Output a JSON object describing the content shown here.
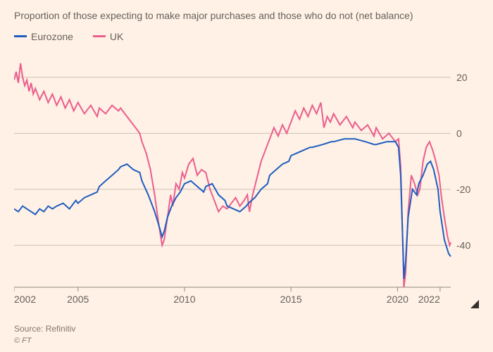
{
  "subtitle": "Proportion of those expecting to make major purchases and those who do not (net balance)",
  "legend": {
    "eurozone": "Eurozone",
    "uk": "UK"
  },
  "chart": {
    "type": "line",
    "background_color": "#fff1e5",
    "grid_color": "#ccc1b7",
    "axis_color": "#8f8980",
    "text_color": "#66605c",
    "label_fontsize": 14,
    "line_width": 2,
    "xlim": [
      2002,
      2022.5
    ],
    "ylim": [
      -55,
      28
    ],
    "yticks": [
      20,
      0,
      -20,
      -40
    ],
    "xticks": [
      2002,
      2005,
      2010,
      2015,
      2020,
      2022
    ],
    "series": [
      {
        "name": "Eurozone",
        "color": "#1f5dbf",
        "points": [
          [
            2002.0,
            -27
          ],
          [
            2002.2,
            -28
          ],
          [
            2002.4,
            -26
          ],
          [
            2002.6,
            -27
          ],
          [
            2002.8,
            -28
          ],
          [
            2003.0,
            -29
          ],
          [
            2003.2,
            -27
          ],
          [
            2003.4,
            -28
          ],
          [
            2003.6,
            -26
          ],
          [
            2003.8,
            -27
          ],
          [
            2004.0,
            -26
          ],
          [
            2004.3,
            -25
          ],
          [
            2004.6,
            -27
          ],
          [
            2004.9,
            -24
          ],
          [
            2005.0,
            -25
          ],
          [
            2005.3,
            -23
          ],
          [
            2005.6,
            -22
          ],
          [
            2005.9,
            -21
          ],
          [
            2006.0,
            -19
          ],
          [
            2006.3,
            -17
          ],
          [
            2006.6,
            -15
          ],
          [
            2006.9,
            -13
          ],
          [
            2007.0,
            -12
          ],
          [
            2007.3,
            -11
          ],
          [
            2007.6,
            -13
          ],
          [
            2007.9,
            -14
          ],
          [
            2008.0,
            -17
          ],
          [
            2008.3,
            -22
          ],
          [
            2008.6,
            -28
          ],
          [
            2008.8,
            -33
          ],
          [
            2008.95,
            -37
          ],
          [
            2009.05,
            -35
          ],
          [
            2009.2,
            -30
          ],
          [
            2009.4,
            -26
          ],
          [
            2009.6,
            -23
          ],
          [
            2009.8,
            -21
          ],
          [
            2010.0,
            -18
          ],
          [
            2010.3,
            -17
          ],
          [
            2010.6,
            -19
          ],
          [
            2010.9,
            -21
          ],
          [
            2011.0,
            -19
          ],
          [
            2011.3,
            -18
          ],
          [
            2011.6,
            -22
          ],
          [
            2011.9,
            -24
          ],
          [
            2012.0,
            -26
          ],
          [
            2012.3,
            -27
          ],
          [
            2012.6,
            -28
          ],
          [
            2012.9,
            -26
          ],
          [
            2013.0,
            -25
          ],
          [
            2013.3,
            -23
          ],
          [
            2013.6,
            -20
          ],
          [
            2013.9,
            -18
          ],
          [
            2014.0,
            -15
          ],
          [
            2014.3,
            -13
          ],
          [
            2014.6,
            -11
          ],
          [
            2014.9,
            -10
          ],
          [
            2015.0,
            -8
          ],
          [
            2015.3,
            -7
          ],
          [
            2015.6,
            -6
          ],
          [
            2015.9,
            -5
          ],
          [
            2016.0,
            -5
          ],
          [
            2016.5,
            -4
          ],
          [
            2016.9,
            -3
          ],
          [
            2017.0,
            -3
          ],
          [
            2017.5,
            -2
          ],
          [
            2017.9,
            -2
          ],
          [
            2018.0,
            -2
          ],
          [
            2018.5,
            -3
          ],
          [
            2018.9,
            -4
          ],
          [
            2019.0,
            -4
          ],
          [
            2019.5,
            -3
          ],
          [
            2019.9,
            -3
          ],
          [
            2020.05,
            -5
          ],
          [
            2020.15,
            -15
          ],
          [
            2020.25,
            -40
          ],
          [
            2020.3,
            -52
          ],
          [
            2020.38,
            -46
          ],
          [
            2020.5,
            -30
          ],
          [
            2020.7,
            -20
          ],
          [
            2020.9,
            -22
          ],
          [
            2021.0,
            -18
          ],
          [
            2021.2,
            -15
          ],
          [
            2021.4,
            -11
          ],
          [
            2021.55,
            -10
          ],
          [
            2021.7,
            -13
          ],
          [
            2021.9,
            -20
          ],
          [
            2022.0,
            -28
          ],
          [
            2022.2,
            -38
          ],
          [
            2022.4,
            -43
          ],
          [
            2022.5,
            -44
          ]
        ]
      },
      {
        "name": "UK",
        "color": "#eb5e8d",
        "points": [
          [
            2002.0,
            19
          ],
          [
            2002.1,
            22
          ],
          [
            2002.2,
            18
          ],
          [
            2002.3,
            25
          ],
          [
            2002.4,
            20
          ],
          [
            2002.5,
            17
          ],
          [
            2002.6,
            19
          ],
          [
            2002.7,
            15
          ],
          [
            2002.8,
            18
          ],
          [
            2002.9,
            14
          ],
          [
            2003.0,
            16
          ],
          [
            2003.2,
            12
          ],
          [
            2003.4,
            15
          ],
          [
            2003.6,
            11
          ],
          [
            2003.8,
            14
          ],
          [
            2004.0,
            10
          ],
          [
            2004.2,
            13
          ],
          [
            2004.4,
            9
          ],
          [
            2004.6,
            12
          ],
          [
            2004.8,
            8
          ],
          [
            2005.0,
            11
          ],
          [
            2005.3,
            7
          ],
          [
            2005.6,
            10
          ],
          [
            2005.9,
            6
          ],
          [
            2006.0,
            9
          ],
          [
            2006.3,
            7
          ],
          [
            2006.6,
            10
          ],
          [
            2006.9,
            8
          ],
          [
            2007.0,
            9
          ],
          [
            2007.3,
            6
          ],
          [
            2007.6,
            3
          ],
          [
            2007.9,
            0
          ],
          [
            2008.0,
            -3
          ],
          [
            2008.2,
            -7
          ],
          [
            2008.4,
            -13
          ],
          [
            2008.6,
            -22
          ],
          [
            2008.8,
            -33
          ],
          [
            2008.95,
            -40
          ],
          [
            2009.05,
            -38
          ],
          [
            2009.2,
            -30
          ],
          [
            2009.35,
            -22
          ],
          [
            2009.45,
            -26
          ],
          [
            2009.6,
            -18
          ],
          [
            2009.75,
            -20
          ],
          [
            2009.9,
            -14
          ],
          [
            2010.0,
            -16
          ],
          [
            2010.2,
            -11
          ],
          [
            2010.4,
            -9
          ],
          [
            2010.6,
            -15
          ],
          [
            2010.8,
            -13
          ],
          [
            2011.0,
            -14
          ],
          [
            2011.2,
            -20
          ],
          [
            2011.4,
            -24
          ],
          [
            2011.6,
            -28
          ],
          [
            2011.8,
            -26
          ],
          [
            2012.0,
            -27
          ],
          [
            2012.2,
            -25
          ],
          [
            2012.4,
            -23
          ],
          [
            2012.6,
            -26
          ],
          [
            2012.8,
            -24
          ],
          [
            2012.95,
            -22
          ],
          [
            2013.05,
            -28
          ],
          [
            2013.2,
            -22
          ],
          [
            2013.4,
            -16
          ],
          [
            2013.6,
            -10
          ],
          [
            2013.8,
            -6
          ],
          [
            2014.0,
            -2
          ],
          [
            2014.2,
            2
          ],
          [
            2014.4,
            -1
          ],
          [
            2014.6,
            3
          ],
          [
            2014.8,
            0
          ],
          [
            2015.0,
            4
          ],
          [
            2015.2,
            8
          ],
          [
            2015.4,
            5
          ],
          [
            2015.6,
            9
          ],
          [
            2015.8,
            6
          ],
          [
            2016.0,
            10
          ],
          [
            2016.2,
            7
          ],
          [
            2016.4,
            11
          ],
          [
            2016.55,
            2
          ],
          [
            2016.7,
            6
          ],
          [
            2016.85,
            4
          ],
          [
            2017.0,
            7
          ],
          [
            2017.3,
            3
          ],
          [
            2017.6,
            6
          ],
          [
            2017.9,
            2
          ],
          [
            2018.0,
            4
          ],
          [
            2018.3,
            1
          ],
          [
            2018.6,
            3
          ],
          [
            2018.9,
            -1
          ],
          [
            2019.0,
            2
          ],
          [
            2019.3,
            -2
          ],
          [
            2019.6,
            0
          ],
          [
            2019.9,
            -3
          ],
          [
            2020.05,
            -2
          ],
          [
            2020.15,
            -12
          ],
          [
            2020.25,
            -40
          ],
          [
            2020.3,
            -55
          ],
          [
            2020.38,
            -50
          ],
          [
            2020.5,
            -28
          ],
          [
            2020.65,
            -15
          ],
          [
            2020.8,
            -18
          ],
          [
            2020.95,
            -22
          ],
          [
            2021.05,
            -20
          ],
          [
            2021.2,
            -10
          ],
          [
            2021.35,
            -5
          ],
          [
            2021.5,
            -3
          ],
          [
            2021.65,
            -6
          ],
          [
            2021.8,
            -10
          ],
          [
            2021.95,
            -15
          ],
          [
            2022.05,
            -22
          ],
          [
            2022.2,
            -30
          ],
          [
            2022.35,
            -37
          ],
          [
            2022.45,
            -40
          ],
          [
            2022.5,
            -39
          ]
        ]
      }
    ]
  },
  "source": "Source: Refinitiv",
  "copyright": "© FT"
}
